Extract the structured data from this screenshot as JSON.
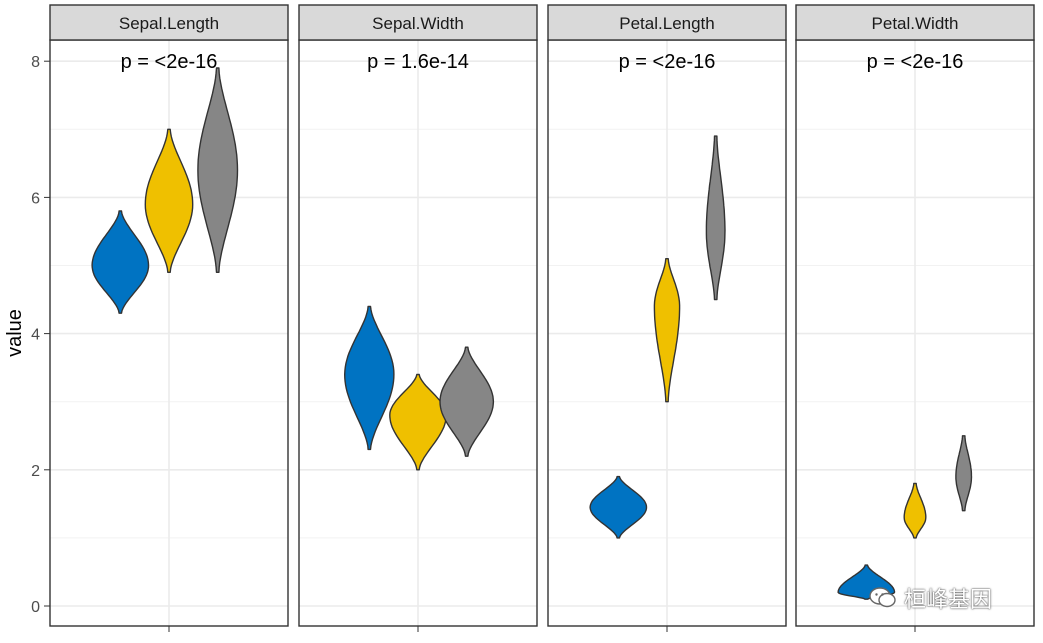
{
  "chart_data": {
    "type": "violin",
    "ylabel": "value",
    "xlabel": "",
    "ylim": [
      -0.3,
      8.3
    ],
    "yticks": [
      0,
      2,
      4,
      6,
      8
    ],
    "group_colors": [
      "#0073C2",
      "#EFC000",
      "#868686"
    ],
    "panels": [
      {
        "title": "Sepal.Length",
        "annotation": "p = <2e-16",
        "violins": [
          {
            "min": 4.3,
            "max": 5.8,
            "mode": 5.0,
            "width": 0.9
          },
          {
            "min": 4.9,
            "max": 7.0,
            "mode": 5.9,
            "width": 0.75
          },
          {
            "min": 4.9,
            "max": 7.9,
            "mode": 6.4,
            "width": 0.62
          }
        ]
      },
      {
        "title": "Sepal.Width",
        "annotation": "p = 1.6e-14",
        "violins": [
          {
            "min": 2.3,
            "max": 4.4,
            "mode": 3.4,
            "width": 0.78
          },
          {
            "min": 2.0,
            "max": 3.4,
            "mode": 2.8,
            "width": 0.9
          },
          {
            "min": 2.2,
            "max": 3.8,
            "mode": 3.0,
            "width": 0.85
          }
        ]
      },
      {
        "title": "Petal.Length",
        "annotation": "p = <2e-16",
        "violins": [
          {
            "min": 1.0,
            "max": 1.9,
            "mode": 1.45,
            "width": 0.9
          },
          {
            "min": 3.0,
            "max": 5.1,
            "mode": 4.4,
            "width": 0.38
          },
          {
            "min": 4.5,
            "max": 6.9,
            "mode": 5.5,
            "width": 0.27
          }
        ]
      },
      {
        "title": "Petal.Width",
        "annotation": "p = <2e-16",
        "violins": [
          {
            "min": 0.1,
            "max": 0.6,
            "mode": 0.2,
            "width": 0.9
          },
          {
            "min": 1.0,
            "max": 1.8,
            "mode": 1.3,
            "width": 0.32
          },
          {
            "min": 1.4,
            "max": 2.5,
            "mode": 1.9,
            "width": 0.22
          }
        ]
      }
    ]
  },
  "watermark": {
    "icon": "wechat-icon",
    "text": "桓峰基因"
  }
}
